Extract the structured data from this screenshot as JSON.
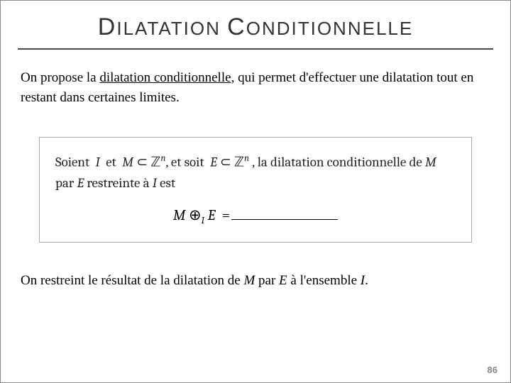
{
  "title": {
    "cap1": "D",
    "rest1": "ILATATION",
    "gap": "  ",
    "cap2": "C",
    "rest2": "ONDITIONNELLE"
  },
  "intro": {
    "pre": "On propose la ",
    "underlined": "dilatation conditionnelle",
    "post": ", qui permet d'effectuer une dilatation tout en restant dans certaines limites."
  },
  "def": {
    "soient": "Soient",
    "I": "I",
    "et": "et",
    "M": "M",
    "subset": "⊂",
    "Z": "ℤ",
    "n": "n",
    "comma_et_soit": ", et soit",
    "E": "E",
    "la_dil": ", la dilatation conditionnelle de ",
    "par": " par ",
    "restreinte": " restreinte à ",
    "est": " est"
  },
  "formula": {
    "M": "M",
    "oplus": "⊕",
    "subI": "I",
    "E": "E",
    "eq": "="
  },
  "conclusion": {
    "pre": "On restreint le résultat de la dilatation de ",
    "M": "M",
    "par": " par ",
    "E": "E",
    "a": " à l'ensemble ",
    "I": "I",
    "dot": "."
  },
  "pagenum": "86"
}
